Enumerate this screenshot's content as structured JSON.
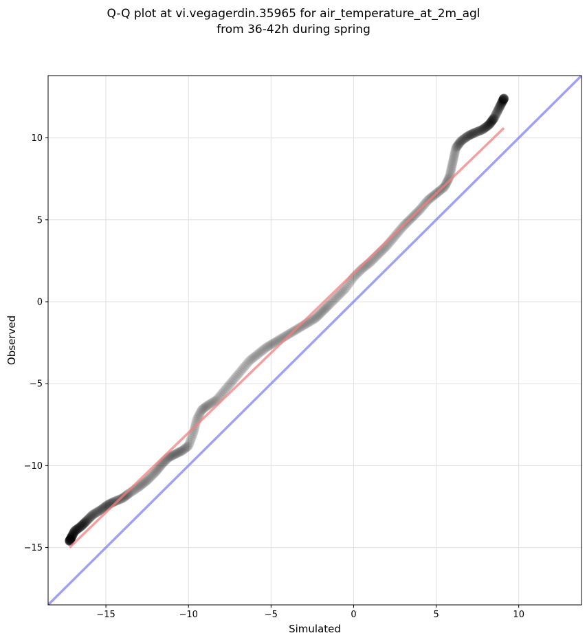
{
  "chart_data": {
    "type": "scatter",
    "title_line1": "Q-Q plot at vi.vegagerdin.35965 for air_temperature_at_2m_agl",
    "title_line2": "from 36-42h during spring",
    "xlabel": "Simulated",
    "ylabel": "Observed",
    "xlim": [
      -18.5,
      13.8
    ],
    "ylim": [
      -18.5,
      13.8
    ],
    "xticks": [
      -15,
      -10,
      -5,
      0,
      5,
      10
    ],
    "xtick_labels": [
      "−15",
      "−10",
      "−5",
      "0",
      "5",
      "10"
    ],
    "yticks": [
      -15,
      -10,
      -5,
      0,
      5,
      10
    ],
    "ytick_labels": [
      "−15",
      "−10",
      "−5",
      "0",
      "5",
      "10"
    ],
    "grid": true,
    "colors": {
      "points": "#000000",
      "fit_line": "#f08080",
      "identity_line": "#8080f0",
      "grid": "#e0e0e0"
    },
    "identity_line": {
      "x": [
        -18.5,
        13.8
      ],
      "y": [
        -18.5,
        13.8
      ]
    },
    "fit_line": {
      "x": [
        -17.2,
        9.1
      ],
      "y": [
        -15.0,
        10.6
      ]
    },
    "qq_anchors": {
      "x": [
        -17.2,
        -16.9,
        -16.5,
        -16.2,
        -15.8,
        -15.3,
        -14.9,
        -14.5,
        -14.0,
        -13.6,
        -13.0,
        -12.5,
        -12.0,
        -11.6,
        -11.2,
        -10.8,
        -10.4,
        -10.0,
        -9.7,
        -9.5,
        -9.2,
        -8.8,
        -8.3,
        -7.8,
        -7.3,
        -6.8,
        -6.3,
        -5.8,
        -5.3,
        -4.8,
        -4.3,
        -3.8,
        -3.3,
        -2.8,
        -2.3,
        -1.9,
        -1.5,
        -1.0,
        -0.5,
        0.0,
        0.5,
        1.0,
        1.5,
        2.0,
        2.5,
        3.0,
        3.5,
        4.0,
        4.5,
        5.0,
        5.5,
        5.8,
        6.0,
        6.2,
        6.5,
        6.9,
        7.3,
        7.8,
        8.2,
        8.5,
        9.1
      ],
      "y": [
        -14.6,
        -14.0,
        -13.7,
        -13.4,
        -13.0,
        -12.7,
        -12.4,
        -12.2,
        -12.0,
        -11.7,
        -11.3,
        -10.9,
        -10.4,
        -9.9,
        -9.5,
        -9.3,
        -9.1,
        -8.8,
        -8.0,
        -7.2,
        -6.6,
        -6.3,
        -6.0,
        -5.4,
        -4.8,
        -4.2,
        -3.6,
        -3.2,
        -2.8,
        -2.5,
        -2.2,
        -1.9,
        -1.6,
        -1.3,
        -1.0,
        -0.6,
        -0.2,
        0.3,
        0.8,
        1.5,
        2.0,
        2.4,
        2.9,
        3.4,
        4.0,
        4.6,
        5.1,
        5.6,
        6.2,
        6.6,
        7.0,
        7.6,
        8.5,
        9.4,
        9.8,
        10.1,
        10.3,
        10.5,
        10.8,
        11.2,
        12.4
      ]
    },
    "n_points": 600
  }
}
